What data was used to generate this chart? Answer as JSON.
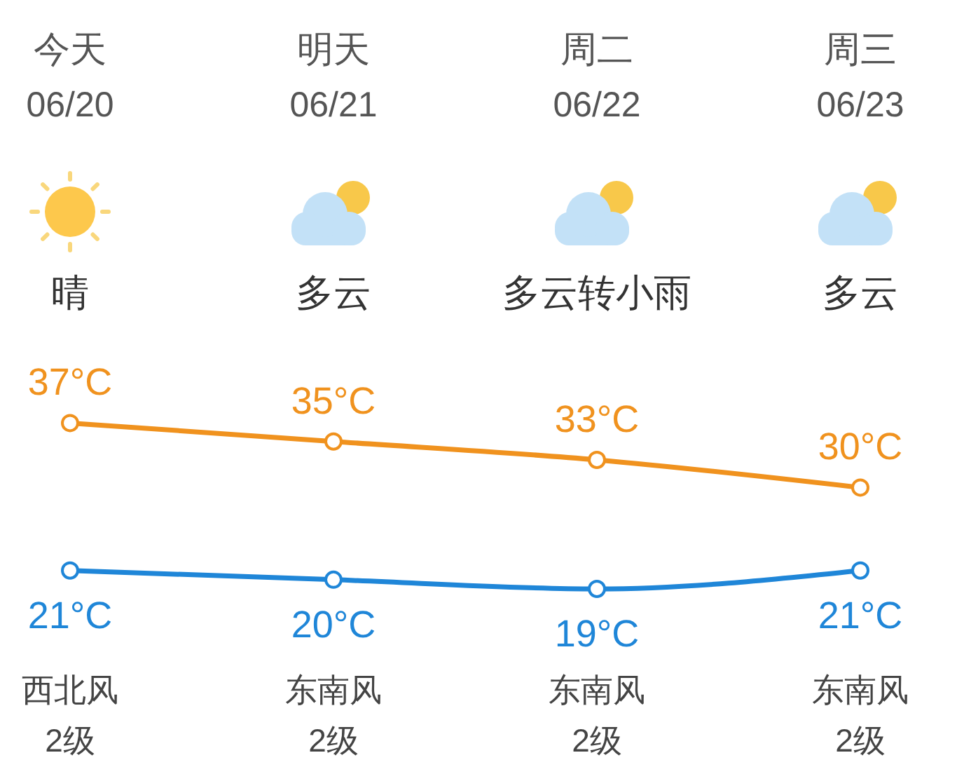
{
  "chart_data": {
    "type": "line",
    "categories": [
      "今天\n06/20",
      "明天\n06/21",
      "周二\n06/22",
      "周三\n06/23"
    ],
    "series": [
      {
        "color": "#f0921e",
        "values": [
          37,
          35,
          33,
          30
        ],
        "value_labels": [
          "37°C",
          "35°C",
          "33°C",
          "30°C"
        ]
      },
      {
        "color": "#1f86d8",
        "values": [
          21,
          20,
          19,
          21
        ],
        "value_labels": [
          "21°C",
          "20°C",
          "19°C",
          "21°C"
        ]
      }
    ],
    "marker": "circle",
    "annotations": [
      "晴",
      "多云",
      "多云转小雨",
      "多云",
      "西北风",
      "东南风",
      "东南风",
      "东南风",
      "2级",
      "2级",
      "2级",
      "2级"
    ]
  }
}
